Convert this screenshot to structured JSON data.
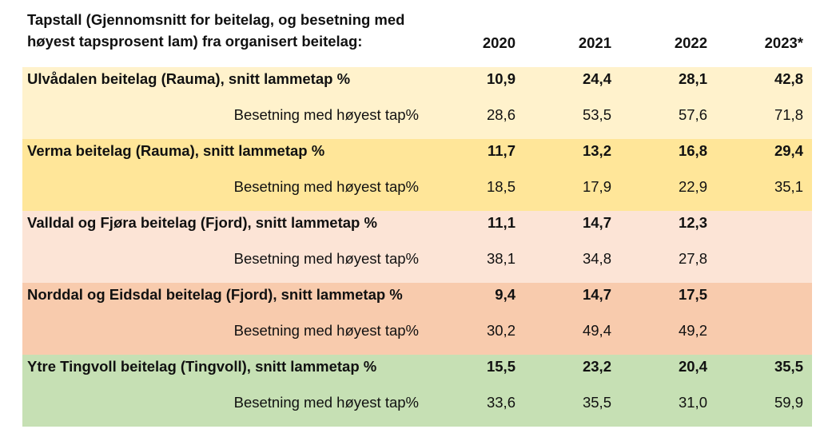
{
  "header": {
    "title_line1": "Tapstall (Gjennomsnitt for beitelag, og besetning med",
    "title_line2": "høyest tapsprosent lam) fra organisert beitelag:",
    "years": [
      "2020",
      "2021",
      "2022",
      "2023*"
    ]
  },
  "groups": [
    {
      "name": "Ulvådalen beitelag (Rauma), snitt lammetap %",
      "color": "#FFF2CC",
      "main_values": [
        "10,9",
        "24,4",
        "28,1",
        "42,8"
      ],
      "sub_label": "Besetning med høyest tap%",
      "sub_values": [
        "28,6",
        "53,5",
        "57,6",
        "71,8"
      ]
    },
    {
      "name": "Verma beitelag (Rauma), snitt lammetap %",
      "color": "#FFE699",
      "main_values": [
        "11,7",
        "13,2",
        "16,8",
        "29,4"
      ],
      "sub_label": "Besetning med høyest tap%",
      "sub_values": [
        "18,5",
        "17,9",
        "22,9",
        "35,1"
      ]
    },
    {
      "name": "Valldal og Fjøra beitelag (Fjord), snitt lammetap %",
      "color": "#FCE4D6",
      "main_values": [
        "11,1",
        "14,7",
        "12,3",
        ""
      ],
      "sub_label": "Besetning med høyest tap%",
      "sub_values": [
        "38,1",
        "34,8",
        "27,8",
        ""
      ]
    },
    {
      "name": "Norddal og Eidsdal beitelag (Fjord), snitt lammetap %",
      "color": "#F8CBAD",
      "main_values": [
        "9,4",
        "14,7",
        "17,5",
        ""
      ],
      "sub_label": "Besetning med høyest tap%",
      "sub_values": [
        "30,2",
        "49,4",
        "49,2",
        ""
      ]
    },
    {
      "name": "Ytre Tingvoll beitelag (Tingvoll), snitt lammetap %",
      "color": "#C6E0B4",
      "main_values": [
        "15,5",
        "23,2",
        "20,4",
        "35,5"
      ],
      "sub_label": "Besetning med høyest tap%",
      "sub_values": [
        "33,6",
        "35,5",
        "31,0",
        "59,9"
      ]
    }
  ]
}
